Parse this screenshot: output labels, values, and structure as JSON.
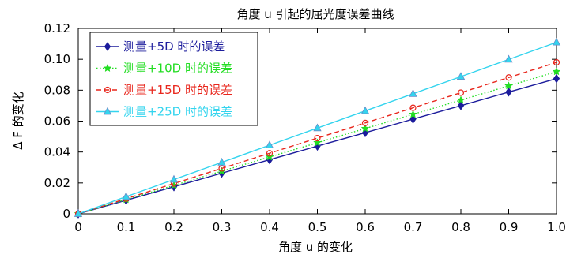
{
  "chart_data": {
    "type": "line",
    "title": "角度 u 引起的屈光度误差曲线",
    "xlabel": "角度 u 的变化",
    "ylabel": "Δ F 的变化",
    "xlim": [
      0,
      1.0
    ],
    "ylim": [
      0,
      0.12
    ],
    "x": [
      0,
      0.1,
      0.2,
      0.3,
      0.4,
      0.5,
      0.6,
      0.7,
      0.8,
      0.9,
      1.0
    ],
    "x_tick_labels": [
      "0",
      "0.1",
      "0.2",
      "0.3",
      "0.4",
      "0.5",
      "0.6",
      "0.7",
      "0.8",
      "0.9",
      "1.0"
    ],
    "y_tick_labels": [
      "0",
      "0.02",
      "0.04",
      "0.06",
      "0.08",
      "0.10",
      "0.12"
    ],
    "y_ticks": [
      0,
      0.02,
      0.04,
      0.06,
      0.08,
      0.1,
      0.12
    ],
    "grid": false,
    "legend_position": "top-left",
    "series": [
      {
        "name": "测量+5D 时的误差",
        "color": "#1c1c9c",
        "marker": "diamond",
        "line_style": "solid",
        "values": [
          0,
          0.0088,
          0.0175,
          0.0263,
          0.035,
          0.0438,
          0.0525,
          0.0613,
          0.07,
          0.0788,
          0.0875
        ]
      },
      {
        "name": "测量+10D 时的误差",
        "color": "#22dd22",
        "marker": "star",
        "line_style": "dotted",
        "values": [
          0,
          0.0092,
          0.0184,
          0.0276,
          0.0368,
          0.046,
          0.0552,
          0.0644,
          0.0736,
          0.0828,
          0.092
        ]
      },
      {
        "name": "测量+15D 时的误差",
        "color": "#e8261c",
        "marker": "circle",
        "line_style": "dashed",
        "values": [
          0,
          0.0098,
          0.0196,
          0.0294,
          0.0392,
          0.049,
          0.0588,
          0.0686,
          0.0784,
          0.0882,
          0.098
        ]
      },
      {
        "name": "测量+25D 时的误差",
        "color": "#33d4ee",
        "marker": "triangle",
        "line_style": "solid",
        "values": [
          0,
          0.0111,
          0.0222,
          0.0333,
          0.0444,
          0.0555,
          0.0666,
          0.0777,
          0.0888,
          0.0999,
          0.111
        ]
      }
    ]
  }
}
